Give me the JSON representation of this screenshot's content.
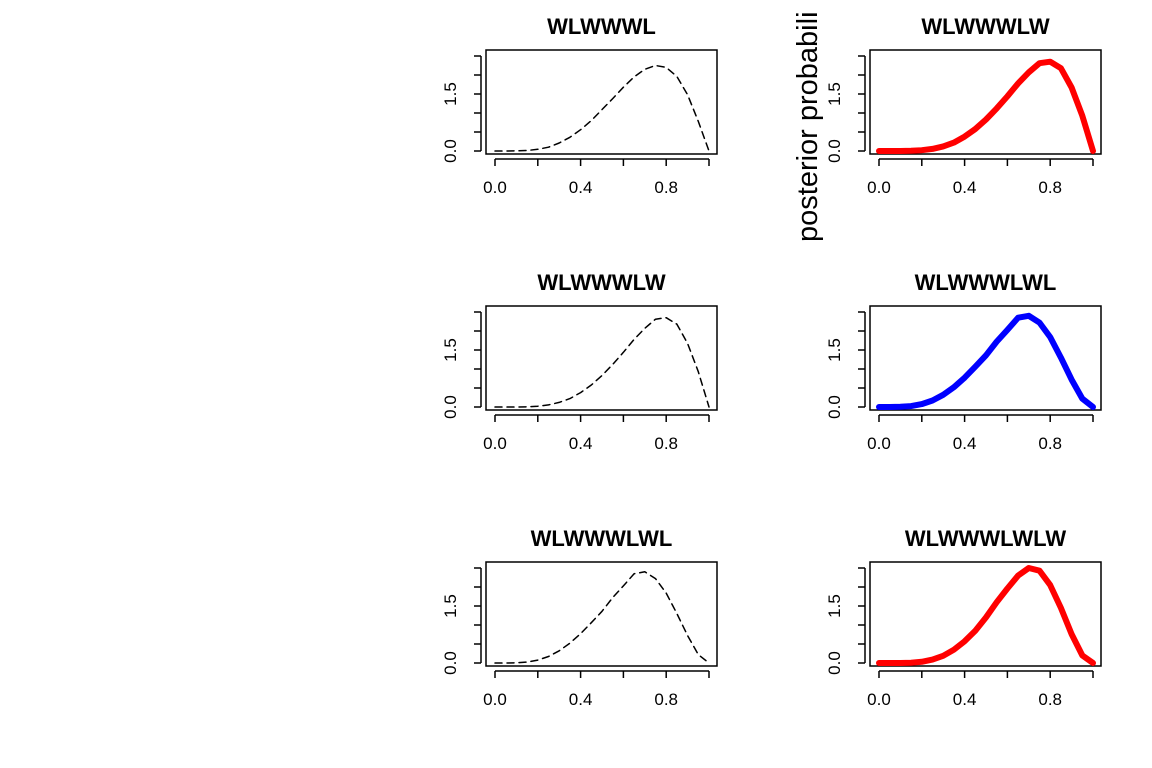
{
  "side_label": "posterior probabili",
  "chart_data": [
    {
      "type": "line",
      "title": "WLWWWL",
      "xlim": [
        0,
        1
      ],
      "ylim": [
        0,
        2.5
      ],
      "x_ticks": [
        "0.0",
        "0.4",
        "0.8"
      ],
      "y_ticks": [
        "0.0",
        "1.5"
      ],
      "series": [
        {
          "style": "dashed",
          "color": "#000000",
          "x": [
            0,
            0.05,
            0.1,
            0.15,
            0.2,
            0.25,
            0.3,
            0.35,
            0.4,
            0.45,
            0.5,
            0.55,
            0.6,
            0.65,
            0.7,
            0.75,
            0.8,
            0.85,
            0.9,
            0.95,
            1
          ],
          "y": [
            0,
            0.0,
            0.003,
            0.014,
            0.045,
            0.1,
            0.21,
            0.36,
            0.56,
            0.8,
            1.09,
            1.38,
            1.68,
            1.95,
            2.15,
            2.25,
            2.2,
            1.96,
            1.48,
            0.78,
            0
          ]
        }
      ]
    },
    {
      "type": "line",
      "title": "WLWWWLW",
      "xlim": [
        0,
        1
      ],
      "ylim": [
        0,
        2.5
      ],
      "x_ticks": [
        "0.0",
        "0.4",
        "0.8"
      ],
      "y_ticks": [
        "0.0",
        "1.5"
      ],
      "series": [
        {
          "style": "solid",
          "color": "#ff0000",
          "x": [
            0,
            0.05,
            0.1,
            0.15,
            0.2,
            0.25,
            0.3,
            0.35,
            0.4,
            0.45,
            0.5,
            0.55,
            0.6,
            0.65,
            0.7,
            0.75,
            0.8,
            0.85,
            0.9,
            0.95,
            1
          ],
          "y": [
            0,
            0.0,
            0.001,
            0.006,
            0.021,
            0.055,
            0.12,
            0.22,
            0.38,
            0.58,
            0.83,
            1.12,
            1.44,
            1.78,
            2.07,
            2.31,
            2.35,
            2.18,
            1.67,
            0.93,
            0
          ]
        }
      ]
    },
    {
      "type": "line",
      "title": "WLWWWLW",
      "xlim": [
        0,
        1
      ],
      "ylim": [
        0,
        2.5
      ],
      "x_ticks": [
        "0.0",
        "0.4",
        "0.8"
      ],
      "y_ticks": [
        "0.0",
        "1.5"
      ],
      "series": [
        {
          "style": "dashed",
          "color": "#000000",
          "x": [
            0,
            0.05,
            0.1,
            0.15,
            0.2,
            0.25,
            0.3,
            0.35,
            0.4,
            0.45,
            0.5,
            0.55,
            0.6,
            0.65,
            0.7,
            0.75,
            0.8,
            0.85,
            0.9,
            0.95,
            1
          ],
          "y": [
            0,
            0.0,
            0.001,
            0.006,
            0.021,
            0.055,
            0.12,
            0.22,
            0.38,
            0.58,
            0.83,
            1.12,
            1.44,
            1.78,
            2.07,
            2.31,
            2.35,
            2.18,
            1.67,
            0.93,
            0
          ]
        }
      ]
    },
    {
      "type": "line",
      "title": "WLWWWLWL",
      "xlim": [
        0,
        1
      ],
      "ylim": [
        0,
        2.5
      ],
      "x_ticks": [
        "0.0",
        "0.4",
        "0.8"
      ],
      "y_ticks": [
        "0.0",
        "1.5"
      ],
      "series": [
        {
          "style": "solid",
          "color": "#0000ff",
          "x": [
            0,
            0.05,
            0.1,
            0.15,
            0.2,
            0.25,
            0.3,
            0.35,
            0.4,
            0.45,
            0.5,
            0.55,
            0.6,
            0.65,
            0.7,
            0.75,
            0.8,
            0.85,
            0.9,
            0.95,
            1
          ],
          "y": [
            0,
            0.0,
            0.004,
            0.024,
            0.075,
            0.17,
            0.32,
            0.52,
            0.77,
            1.06,
            1.36,
            1.72,
            2.03,
            2.35,
            2.4,
            2.22,
            1.84,
            1.3,
            0.72,
            0.22,
            0
          ]
        }
      ]
    },
    {
      "type": "line",
      "title": "WLWWWLWL",
      "xlim": [
        0,
        1
      ],
      "ylim": [
        0,
        2.5
      ],
      "x_ticks": [
        "0.0",
        "0.4",
        "0.8"
      ],
      "y_ticks": [
        "0.0",
        "1.5"
      ],
      "series": [
        {
          "style": "dashed",
          "color": "#000000",
          "x": [
            0,
            0.05,
            0.1,
            0.15,
            0.2,
            0.25,
            0.3,
            0.35,
            0.4,
            0.45,
            0.5,
            0.55,
            0.6,
            0.65,
            0.7,
            0.75,
            0.8,
            0.85,
            0.9,
            0.95,
            1
          ],
          "y": [
            0,
            0.0,
            0.004,
            0.024,
            0.075,
            0.17,
            0.32,
            0.52,
            0.77,
            1.06,
            1.36,
            1.72,
            2.03,
            2.35,
            2.4,
            2.22,
            1.84,
            1.3,
            0.72,
            0.22,
            0
          ]
        }
      ]
    },
    {
      "type": "line",
      "title": "WLWWWLWLW",
      "xlim": [
        0,
        1
      ],
      "ylim": [
        0,
        2.5
      ],
      "x_ticks": [
        "0.0",
        "0.4",
        "0.8"
      ],
      "y_ticks": [
        "0.0",
        "1.5"
      ],
      "series": [
        {
          "style": "solid",
          "color": "#ff0000",
          "x": [
            0,
            0.05,
            0.1,
            0.15,
            0.2,
            0.25,
            0.3,
            0.35,
            0.4,
            0.45,
            0.5,
            0.55,
            0.6,
            0.65,
            0.7,
            0.75,
            0.8,
            0.85,
            0.9,
            0.95,
            1
          ],
          "y": [
            0,
            0.0,
            0.001,
            0.008,
            0.032,
            0.09,
            0.19,
            0.35,
            0.57,
            0.85,
            1.2,
            1.6,
            1.96,
            2.3,
            2.5,
            2.43,
            2.05,
            1.45,
            0.76,
            0.2,
            0
          ]
        }
      ]
    }
  ]
}
